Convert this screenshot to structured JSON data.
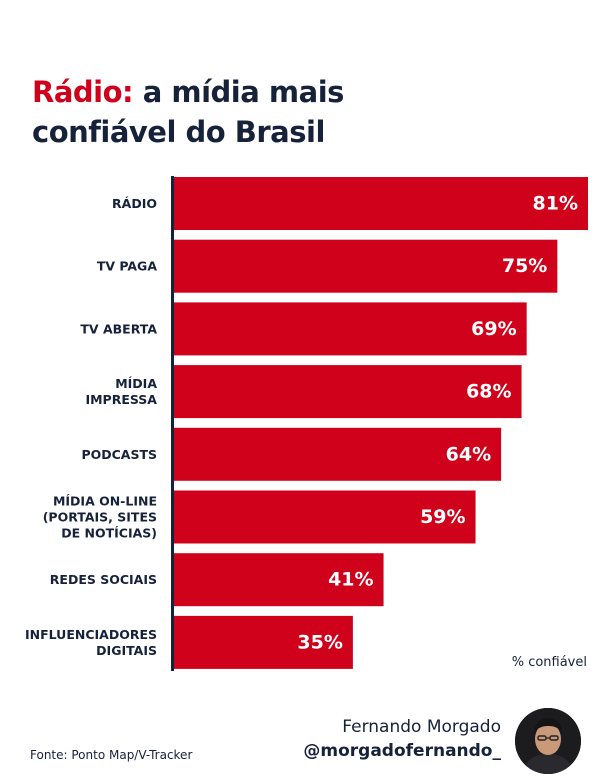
{
  "header": {
    "title_accent": "Rádio:",
    "title_rest_line1": " a mídia mais",
    "title_line2": "confiável do Brasil"
  },
  "chart_data": {
    "type": "bar",
    "orientation": "horizontal",
    "categories": [
      [
        "RÁDIO"
      ],
      [
        "TV PAGA"
      ],
      [
        "TV ABERTA"
      ],
      [
        "MÍDIA",
        "IMPRESSA"
      ],
      [
        "PODCASTS"
      ],
      [
        "MÍDIA ON-LINE",
        "(PORTAIS, SITES",
        "DE NOTÍCIAS)"
      ],
      [
        "REDES SOCIAIS"
      ],
      [
        "INFLUENCIADORES",
        "DIGITAIS"
      ]
    ],
    "values": [
      81,
      75,
      69,
      68,
      64,
      59,
      41,
      35
    ],
    "value_labels": [
      "81%",
      "75%",
      "69%",
      "68%",
      "64%",
      "59%",
      "41%",
      "35%"
    ],
    "unit_label": "% confiável",
    "bar_color": "#d0021b",
    "axis_color": "#16213a"
  },
  "footer": {
    "source": "Fonte: Ponto Map/V-Tracker",
    "author_name": "Fernando Morgado",
    "author_handle": "@morgadofernando_"
  },
  "colors": {
    "accent": "#d0021b",
    "text": "#16213a"
  }
}
